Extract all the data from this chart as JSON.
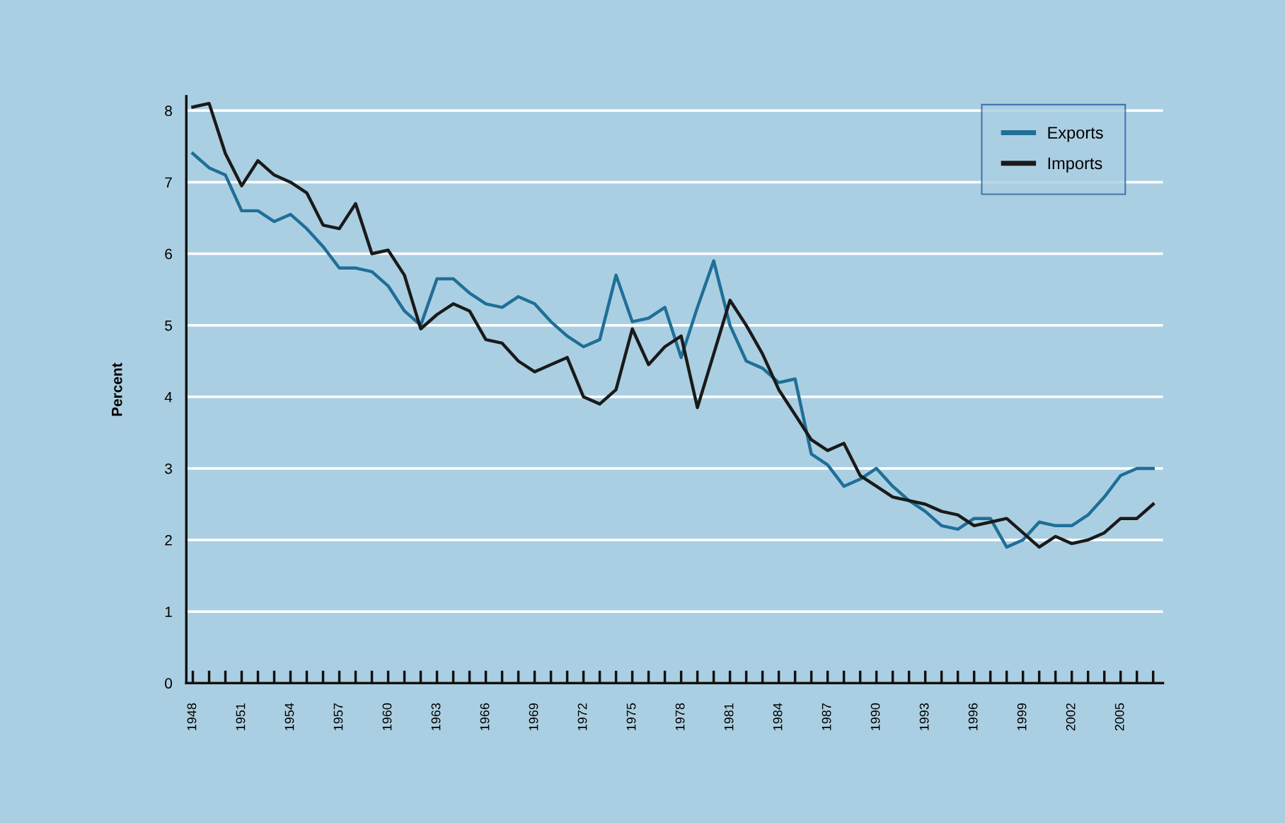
{
  "chart_data": {
    "type": "line",
    "ylabel": "Percent",
    "x": [
      1948,
      1949,
      1950,
      1951,
      1952,
      1953,
      1954,
      1955,
      1956,
      1957,
      1958,
      1959,
      1960,
      1961,
      1962,
      1963,
      1964,
      1965,
      1966,
      1967,
      1968,
      1969,
      1970,
      1971,
      1972,
      1973,
      1974,
      1975,
      1976,
      1977,
      1978,
      1979,
      1980,
      1981,
      1982,
      1983,
      1984,
      1985,
      1986,
      1987,
      1988,
      1989,
      1990,
      1991,
      1992,
      1993,
      1994,
      1995,
      1996,
      1997,
      1998,
      1999,
      2000,
      2001,
      2002,
      2003,
      2004,
      2005,
      2006,
      2007
    ],
    "series": [
      {
        "name": "Exports",
        "color": "#1f6f98",
        "values": [
          7.4,
          7.2,
          7.1,
          6.6,
          6.6,
          6.45,
          6.55,
          6.35,
          6.1,
          5.8,
          5.8,
          5.75,
          5.55,
          5.2,
          5.0,
          5.65,
          5.65,
          5.45,
          5.3,
          5.25,
          5.4,
          5.3,
          5.05,
          4.85,
          4.7,
          4.8,
          5.7,
          5.05,
          5.1,
          5.25,
          4.55,
          5.25,
          5.9,
          5.0,
          4.5,
          4.4,
          4.2,
          4.25,
          3.2,
          3.05,
          2.75,
          2.85,
          3.0,
          2.75,
          2.55,
          2.4,
          2.2,
          2.15,
          2.3,
          2.3,
          1.9,
          2.0,
          2.25,
          2.2,
          2.2,
          2.35,
          2.6,
          2.9,
          3.0,
          3.0
        ]
      },
      {
        "name": "Imports",
        "color": "#1a1a1a",
        "values": [
          8.05,
          8.1,
          7.4,
          6.95,
          7.3,
          7.1,
          7.0,
          6.85,
          6.4,
          6.35,
          6.7,
          6.0,
          6.05,
          5.7,
          4.95,
          5.15,
          5.3,
          5.2,
          4.8,
          4.75,
          4.5,
          4.35,
          4.45,
          4.55,
          4.0,
          3.9,
          4.1,
          4.95,
          4.45,
          4.7,
          4.85,
          3.85,
          4.6,
          5.35,
          5.0,
          4.6,
          4.1,
          3.75,
          3.4,
          3.25,
          3.35,
          2.9,
          2.75,
          2.6,
          2.55,
          2.5,
          2.4,
          2.35,
          2.2,
          2.25,
          2.3,
          2.1,
          1.9,
          2.05,
          1.95,
          2.0,
          2.1,
          2.3,
          2.3,
          2.5
        ]
      }
    ],
    "xlim": [
      1947.6,
      2007.6
    ],
    "xticks": [
      1948,
      {
        "value": 1949,
        "label": null
      },
      {
        "value": 1950,
        "label": null
      },
      1951,
      {
        "value": 1952,
        "label": null
      },
      {
        "value": 1953,
        "label": null
      },
      1954,
      {
        "value": 1955,
        "label": null
      },
      {
        "value": 1956,
        "label": null
      },
      1957,
      {
        "value": 1958,
        "label": null
      },
      {
        "value": 1959,
        "label": null
      },
      1960,
      {
        "value": 1961,
        "label": null
      },
      {
        "value": 1962,
        "label": null
      },
      1963,
      {
        "value": 1964,
        "label": null
      },
      {
        "value": 1965,
        "label": null
      },
      1966,
      {
        "value": 1967,
        "label": null
      },
      {
        "value": 1968,
        "label": null
      },
      1969,
      {
        "value": 1970,
        "label": null
      },
      {
        "value": 1971,
        "label": null
      },
      1972,
      {
        "value": 1973,
        "label": null
      },
      {
        "value": 1974,
        "label": null
      },
      1975,
      {
        "value": 1976,
        "label": null
      },
      {
        "value": 1977,
        "label": null
      },
      1978,
      {
        "value": 1979,
        "label": null
      },
      {
        "value": 1980,
        "label": null
      },
      1981,
      {
        "value": 1982,
        "label": null
      },
      {
        "value": 1983,
        "label": null
      },
      1984,
      {
        "value": 1985,
        "label": null
      },
      {
        "value": 1986,
        "label": null
      },
      1987,
      {
        "value": 1988,
        "label": null
      },
      {
        "value": 1989,
        "label": null
      },
      1990,
      {
        "value": 1991,
        "label": null
      },
      {
        "value": 1992,
        "label": null
      },
      1993,
      {
        "value": 1994,
        "label": null
      },
      {
        "value": 1995,
        "label": null
      },
      1996,
      {
        "value": 1997,
        "label": null
      },
      {
        "value": 1998,
        "label": null
      },
      1999,
      {
        "value": 2000,
        "label": null
      },
      {
        "value": 2001,
        "label": null
      },
      2002,
      {
        "value": 2003,
        "label": null
      },
      {
        "value": 2004,
        "label": null
      },
      2005,
      {
        "value": 2006,
        "label": null
      },
      {
        "value": 2007,
        "label": null
      }
    ],
    "ylim": [
      0,
      8.2
    ],
    "yticks": [
      0,
      1,
      2,
      3,
      4,
      5,
      6,
      7,
      8
    ],
    "grid": "y",
    "legend": "top right",
    "marker": "none",
    "line_style": "solid"
  }
}
